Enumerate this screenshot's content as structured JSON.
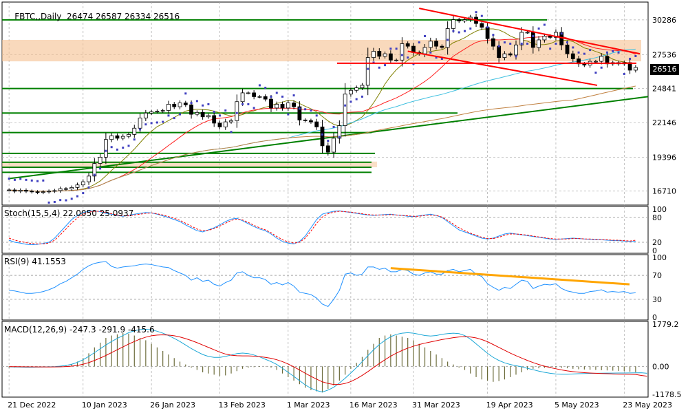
{
  "header": {
    "symbol": "FBTC,,Daily",
    "ohlc": "26474 26587 26334 26516",
    "stoch_label": "Stoch(15,5,4) 22.0050 25.0937",
    "rsi_label": "RSI(9) 41.1553",
    "macd_label": "MACD(12,26,9) -247.3 -291.9 -415.6"
  },
  "last_price": "26516",
  "x_axis_labels": [
    "21 Dec 2022",
    "10 Jan 2023",
    "26 Jan 2023",
    "13 Feb 2023",
    "1 Mar 2023",
    "16 Mar 2023",
    "31 Mar 2023",
    "19 Apr 2023",
    "5 May 2023",
    "23 May 2023"
  ],
  "colors": {
    "bull": "#ffffff",
    "bear": "#000000",
    "trend_red": "#ff0000",
    "support_green": "#008000",
    "zone_orange": "#f5c090",
    "rsi_trend": "#ffa500",
    "sar": "#4040c0",
    "stoch_main": "#1e90ff",
    "stoch_signal": "#ff0000",
    "rsi_line": "#1e90ff",
    "macd_hist": "#6b6b3a",
    "macd_line": "#1ca7d6",
    "macd_signal": "#e00000"
  },
  "chart_data": [
    {
      "type": "candlestick",
      "title": "FBTC,,Daily",
      "y_ticks": [
        16710,
        19396,
        22146,
        24841,
        27536,
        30286
      ],
      "ylim": [
        15600,
        31700
      ],
      "x": [
        "2022-12-21",
        "2022-12-22",
        "2022-12-23",
        "2022-12-27",
        "2022-12-28",
        "2022-12-29",
        "2022-12-30",
        "2023-01-02",
        "2023-01-03",
        "2023-01-04",
        "2023-01-05",
        "2023-01-06",
        "2023-01-09",
        "2023-01-10",
        "2023-01-11",
        "2023-01-12",
        "2023-01-13",
        "2023-01-16",
        "2023-01-17",
        "2023-01-18",
        "2023-01-19",
        "2023-01-20",
        "2023-01-23",
        "2023-01-24",
        "2023-01-25",
        "2023-01-26",
        "2023-01-27",
        "2023-01-30",
        "2023-01-31",
        "2023-02-01",
        "2023-02-02",
        "2023-02-03",
        "2023-02-06",
        "2023-02-07",
        "2023-02-08",
        "2023-02-09",
        "2023-02-10",
        "2023-02-13",
        "2023-02-14",
        "2023-02-15",
        "2023-02-16",
        "2023-02-17",
        "2023-02-20",
        "2023-02-21",
        "2023-02-22",
        "2023-02-23",
        "2023-02-24",
        "2023-02-27",
        "2023-02-28",
        "2023-03-01",
        "2023-03-02",
        "2023-03-03",
        "2023-03-06",
        "2023-03-07",
        "2023-03-08",
        "2023-03-09",
        "2023-03-10",
        "2023-03-13",
        "2023-03-14",
        "2023-03-15",
        "2023-03-16",
        "2023-03-17",
        "2023-03-20",
        "2023-03-21",
        "2023-03-22",
        "2023-03-23",
        "2023-03-24",
        "2023-03-27",
        "2023-03-28",
        "2023-03-29",
        "2023-03-30",
        "2023-03-31",
        "2023-04-03",
        "2023-04-04",
        "2023-04-05",
        "2023-04-06",
        "2023-04-07",
        "2023-04-10",
        "2023-04-11",
        "2023-04-12",
        "2023-04-13",
        "2023-04-14",
        "2023-04-17",
        "2023-04-18",
        "2023-04-19",
        "2023-04-20",
        "2023-04-21",
        "2023-04-24",
        "2023-04-25",
        "2023-04-26",
        "2023-04-27",
        "2023-04-28",
        "2023-05-01",
        "2023-05-02",
        "2023-05-03",
        "2023-05-04",
        "2023-05-05",
        "2023-05-08",
        "2023-05-09",
        "2023-05-10",
        "2023-05-11",
        "2023-05-12",
        "2023-05-15",
        "2023-05-16",
        "2023-05-17",
        "2023-05-18",
        "2023-05-19",
        "2023-05-22",
        "2023-05-23",
        "2023-05-24",
        "2023-05-25"
      ],
      "close": [
        16800,
        16700,
        16780,
        16700,
        16650,
        16600,
        16650,
        16700,
        16750,
        16900,
        16880,
        17000,
        17200,
        17450,
        17900,
        18900,
        19400,
        20800,
        21100,
        20900,
        21050,
        21200,
        21700,
        22500,
        22900,
        23000,
        23050,
        23100,
        23600,
        23400,
        23700,
        23550,
        22800,
        22950,
        22600,
        22700,
        22100,
        21800,
        22200,
        22300,
        23800,
        24500,
        24500,
        24200,
        24200,
        24000,
        23300,
        23600,
        23300,
        23700,
        23400,
        22350,
        22300,
        22200,
        21800,
        20300,
        19800,
        20900,
        21900,
        24400,
        24700,
        24900,
        25100,
        27300,
        27800,
        27400,
        27600,
        27100,
        27100,
        28400,
        28200,
        27700,
        27600,
        28100,
        28600,
        28200,
        28100,
        29600,
        30300,
        30200,
        30300,
        30500,
        30000,
        29700,
        28800,
        28200,
        27300,
        27600,
        27500,
        28300,
        29300,
        29300,
        28100,
        28700,
        29000,
        28900,
        29300,
        28300,
        27600,
        27200,
        26800,
        26700,
        27000,
        27000,
        27400,
        26800,
        26900,
        26800,
        26900,
        26300,
        26516
      ],
      "support_levels": [
        30286,
        24841,
        22900,
        21350,
        19700,
        19000,
        18600,
        18200
      ],
      "resistance_zone": [
        27000,
        28700
      ],
      "channel_top": [
        [
          "2023-04-03",
          31200
        ],
        [
          "2023-05-25",
          27600
        ]
      ],
      "channel_bottom": [
        [
          "2023-03-30",
          27800
        ],
        [
          "2023-05-22",
          25100
        ]
      ],
      "horizontal_red": 26850,
      "trendline_green": [
        [
          "2022-12-21",
          17700
        ],
        [
          "2023-05-25",
          24200
        ]
      ]
    },
    {
      "type": "line",
      "title": "Stoch(15,5,4) 22.0050 25.0937",
      "y_ticks": [
        100,
        80,
        20,
        0
      ],
      "ylim": [
        0,
        100
      ],
      "series": [
        {
          "name": "main",
          "values": [
            25,
            20,
            18,
            15,
            14,
            15,
            17,
            20,
            30,
            45,
            60,
            75,
            85,
            92,
            95,
            96,
            94,
            90,
            88,
            85,
            83,
            85,
            88,
            90,
            92,
            91,
            88,
            84,
            80,
            75,
            70,
            62,
            55,
            48,
            45,
            50,
            55,
            62,
            70,
            76,
            78,
            72,
            65,
            58,
            52,
            48,
            40,
            30,
            22,
            18,
            16,
            22,
            35,
            55,
            75,
            88,
            92,
            95,
            96,
            94,
            92,
            90,
            88,
            86,
            85,
            86,
            87,
            88,
            86,
            85,
            83,
            82,
            84,
            86,
            88,
            85,
            80,
            70,
            60,
            50,
            45,
            40,
            35,
            30,
            28,
            30,
            35,
            40,
            42,
            40,
            38,
            36,
            34,
            32,
            30,
            28,
            27,
            28,
            29,
            30,
            29,
            28,
            27,
            26,
            26,
            25,
            24,
            24,
            23,
            22,
            22
          ]
        },
        {
          "name": "signal",
          "values": [
            30,
            25,
            22,
            19,
            17,
            16,
            16,
            18,
            25,
            38,
            52,
            67,
            79,
            88,
            93,
            95,
            95,
            92,
            89,
            86,
            84,
            84,
            86,
            88,
            90,
            91,
            89,
            86,
            82,
            78,
            73,
            66,
            59,
            52,
            48,
            49,
            53,
            59,
            66,
            73,
            76,
            74,
            68,
            61,
            55,
            50,
            43,
            34,
            26,
            21,
            18,
            20,
            30,
            47,
            66,
            81,
            89,
            93,
            95,
            94,
            93,
            91,
            89,
            87,
            86,
            86,
            86,
            87,
            86,
            85,
            84,
            83,
            83,
            85,
            86,
            85,
            81,
            73,
            64,
            55,
            48,
            42,
            37,
            32,
            29,
            29,
            32,
            37,
            40,
            40,
            39,
            37,
            35,
            33,
            31,
            29,
            28,
            28,
            28,
            29,
            29,
            28,
            28,
            27,
            26,
            26,
            25,
            25,
            24,
            23,
            25
          ]
        }
      ]
    },
    {
      "type": "line",
      "title": "RSI(9) 41.1553",
      "y_ticks": [
        100,
        70,
        30,
        0
      ],
      "ylim": [
        0,
        100
      ],
      "series": [
        {
          "name": "RSI(9)",
          "values": [
            45,
            44,
            42,
            40,
            40,
            41,
            43,
            46,
            50,
            56,
            60,
            66,
            72,
            80,
            86,
            90,
            92,
            93,
            85,
            82,
            84,
            85,
            86,
            88,
            89,
            88,
            86,
            84,
            83,
            78,
            74,
            70,
            62,
            66,
            60,
            62,
            55,
            52,
            58,
            62,
            74,
            76,
            70,
            66,
            66,
            63,
            55,
            58,
            54,
            58,
            52,
            42,
            40,
            38,
            32,
            22,
            18,
            30,
            45,
            72,
            74,
            70,
            72,
            84,
            84,
            80,
            82,
            76,
            76,
            80,
            78,
            72,
            70,
            74,
            76,
            72,
            72,
            78,
            80,
            76,
            78,
            80,
            72,
            68,
            56,
            50,
            45,
            50,
            48,
            55,
            62,
            60,
            48,
            52,
            55,
            54,
            56,
            48,
            44,
            42,
            40,
            40,
            43,
            44,
            46,
            42,
            43,
            42,
            43,
            40,
            41
          ]
        }
      ],
      "trendline": [
        [
          67,
          82
        ],
        [
          110,
          55
        ]
      ]
    },
    {
      "type": "bar",
      "title": "MACD(12,26,9) -247.3 -291.9 -415.6",
      "y_ticks": [
        1779.2,
        0.0,
        -1178.5
      ],
      "ylim": [
        -1178.5,
        1779.2
      ],
      "series": [
        {
          "name": "histogram",
          "values": [
            -50,
            -45,
            -40,
            -35,
            -30,
            -25,
            -20,
            -10,
            0,
            20,
            50,
            100,
            200,
            350,
            550,
            800,
            1000,
            1200,
            1300,
            1350,
            1400,
            1380,
            1300,
            1200,
            1100,
            950,
            800,
            650,
            500,
            350,
            200,
            80,
            -50,
            -150,
            -250,
            -300,
            -350,
            -400,
            -380,
            -300,
            -200,
            -100,
            -50,
            -30,
            -20,
            -10,
            -50,
            -150,
            -300,
            -450,
            -600,
            -750,
            -900,
            -1000,
            -1050,
            -1100,
            -950,
            -800,
            -600,
            -350,
            -100,
            150,
            400,
            700,
            950,
            1200,
            1300,
            1350,
            1300,
            1250,
            1200,
            1100,
            950,
            800,
            650,
            500,
            350,
            200,
            80,
            -50,
            -150,
            -300,
            -450,
            -550,
            -600,
            -650,
            -620,
            -550,
            -450,
            -350,
            -250,
            -150,
            -100,
            -80,
            -60,
            -50,
            -50,
            -60,
            -80,
            -100,
            -120,
            -130,
            -140,
            -150,
            -160,
            -170,
            -180,
            -190,
            -200,
            -220,
            -247
          ]
        },
        {
          "name": "MACD",
          "values": [
            -20,
            -25,
            -30,
            -35,
            -35,
            -30,
            -25,
            -20,
            -10,
            10,
            40,
            90,
            170,
            280,
            420,
            580,
            740,
            900,
            1050,
            1180,
            1300,
            1420,
            1500,
            1550,
            1560,
            1540,
            1480,
            1400,
            1300,
            1180,
            1050,
            900,
            750,
            620,
            500,
            420,
            380,
            380,
            420,
            480,
            540,
            560,
            540,
            480,
            400,
            300,
            200,
            80,
            -80,
            -250,
            -420,
            -600,
            -780,
            -920,
            -1020,
            -1080,
            -1000,
            -880,
            -700,
            -500,
            -280,
            -50,
            200,
            450,
            700,
            920,
            1100,
            1250,
            1350,
            1400,
            1420,
            1400,
            1350,
            1300,
            1280,
            1300,
            1350,
            1380,
            1400,
            1380,
            1300,
            1150,
            950,
            750,
            550,
            380,
            250,
            150,
            80,
            30,
            -20,
            -80,
            -140,
            -200,
            -250,
            -290,
            -320,
            -330,
            -330,
            -320,
            -310,
            -300,
            -295,
            -290,
            -288,
            -285,
            -282,
            -280,
            -278,
            -275,
            -272,
            -270,
            -292
          ]
        },
        {
          "name": "signal",
          "values": [
            -10,
            -12,
            -15,
            -18,
            -20,
            -22,
            -24,
            -25,
            -23,
            -18,
            -8,
            10,
            40,
            90,
            160,
            250,
            350,
            460,
            580,
            700,
            820,
            940,
            1050,
            1150,
            1230,
            1290,
            1320,
            1330,
            1320,
            1290,
            1240,
            1170,
            1090,
            1000,
            900,
            800,
            700,
            600,
            520,
            470,
            450,
            440,
            440,
            430,
            410,
            380,
            340,
            280,
            200,
            100,
            -20,
            -150,
            -290,
            -420,
            -540,
            -650,
            -720,
            -760,
            -760,
            -720,
            -640,
            -520,
            -380,
            -220,
            -50,
            120,
            280,
            430,
            560,
            670,
            770,
            850,
            920,
            980,
            1030,
            1080,
            1130,
            1170,
            1210,
            1240,
            1250,
            1240,
            1200,
            1130,
            1040,
            920,
            800,
            680,
            560,
            450,
            350,
            250,
            160,
            80,
            10,
            -50,
            -100,
            -150,
            -190,
            -220,
            -245,
            -265,
            -280,
            -292,
            -302,
            -310,
            -318,
            -325,
            -330,
            -335,
            -340,
            -380,
            -415
          ]
        }
      ]
    }
  ]
}
